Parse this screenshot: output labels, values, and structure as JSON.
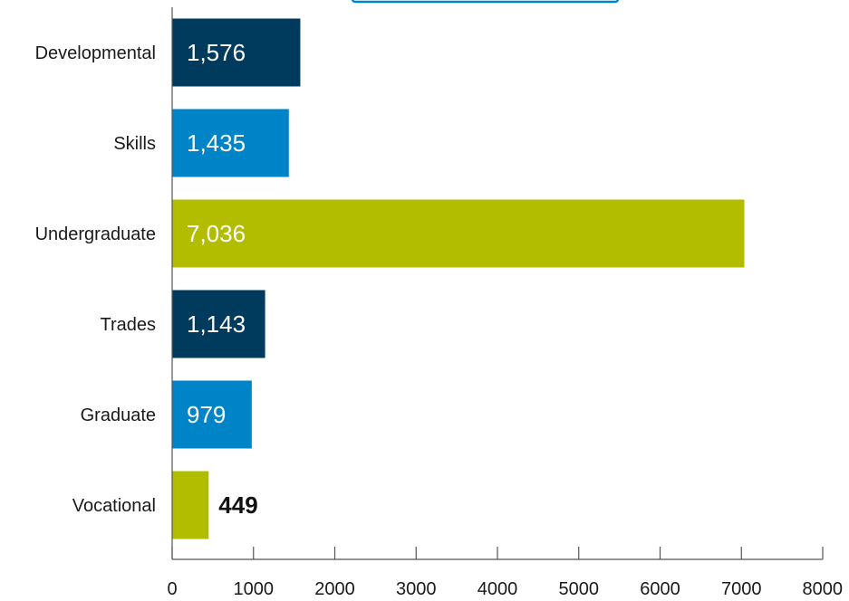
{
  "chart_data": {
    "type": "bar",
    "orientation": "horizontal",
    "categories": [
      "Developmental",
      "Skills",
      "Undergraduate",
      "Trades",
      "Graduate",
      "Vocational"
    ],
    "values": [
      1576,
      1435,
      7036,
      1143,
      979,
      449
    ],
    "value_labels": [
      "1,576",
      "1,435",
      "7,036",
      "1,143",
      "979",
      "449"
    ],
    "bar_colors": [
      "#003a5d",
      "#0084c8",
      "#b3bd00",
      "#003a5d",
      "#0084c8",
      "#b3bd00"
    ],
    "xlim": [
      0,
      8000
    ],
    "x_ticks": [
      0,
      1000,
      2000,
      3000,
      4000,
      5000,
      6000,
      7000,
      8000
    ],
    "x_tick_labels": [
      "0",
      "1000",
      "2000",
      "3000",
      "4000",
      "5000",
      "6000",
      "7000",
      "8000"
    ],
    "title": "",
    "xlabel": "",
    "ylabel": "",
    "grid": false,
    "legend_accent_color": "#0084c8"
  }
}
